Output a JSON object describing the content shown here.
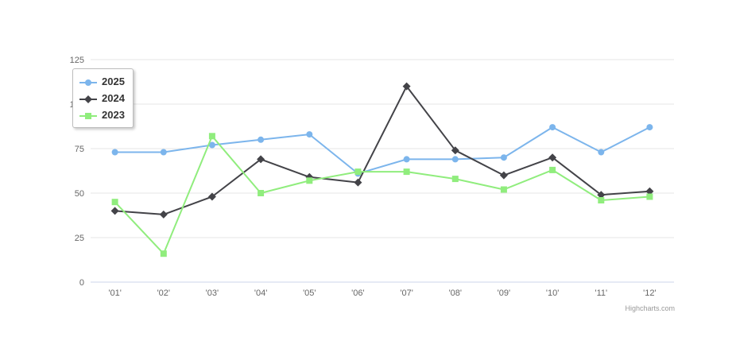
{
  "chart_data": {
    "type": "line",
    "title": "",
    "xlabel": "",
    "ylabel": "",
    "categories": [
      "'01'",
      "'02'",
      "'03'",
      "'04'",
      "'05'",
      "'06'",
      "'07'",
      "'08'",
      "'09'",
      "'10'",
      "'11'",
      "'12'"
    ],
    "series": [
      {
        "name": "2025",
        "color": "#7cb5ec",
        "symbol": "circle",
        "values": [
          73,
          73,
          77,
          80,
          83,
          61,
          69,
          69,
          70,
          87,
          73,
          87
        ]
      },
      {
        "name": "2024",
        "color": "#434348",
        "symbol": "diamond",
        "values": [
          40,
          38,
          48,
          69,
          59,
          56,
          110,
          74,
          60,
          70,
          49,
          51
        ]
      },
      {
        "name": "2023",
        "color": "#90ed7d",
        "symbol": "square",
        "values": [
          45,
          16,
          82,
          50,
          57,
          62,
          62,
          58,
          52,
          63,
          46,
          48
        ]
      }
    ],
    "yticks": [
      0,
      25,
      50,
      75,
      100,
      125
    ],
    "ylim": [
      0,
      125
    ],
    "grid": true,
    "legend_position": "top-left"
  },
  "colors": {
    "grid_line": "#e6e6e6",
    "axis_line": "#ccd6eb",
    "tick_label": "#666666",
    "legend_text": "#333333",
    "credits_text": "#999999"
  },
  "credits": {
    "label": "Highcharts.com"
  }
}
